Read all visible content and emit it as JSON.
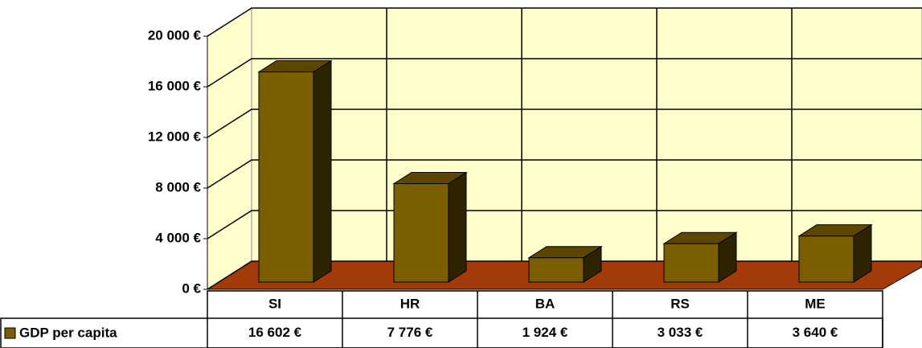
{
  "chart_data": {
    "type": "bar3d",
    "categories": [
      "SI",
      "HR",
      "BA",
      "RS",
      "ME"
    ],
    "series": [
      {
        "name": "GDP per capita",
        "color": "#7a5e00",
        "values": [
          16602,
          7776,
          1924,
          3033,
          3640
        ],
        "value_labels": [
          "16 602 €",
          "7 776 €",
          "1 924 €",
          "3 033 €",
          "3 640 €"
        ]
      }
    ],
    "ylim": [
      0,
      20000
    ],
    "yticks": [
      {
        "value": 0,
        "label": "0 €"
      },
      {
        "value": 4000,
        "label": "4 000 €"
      },
      {
        "value": 8000,
        "label": "8 000 €"
      },
      {
        "value": 12000,
        "label": "12 000 €"
      },
      {
        "value": 16000,
        "label": "16 000 €"
      },
      {
        "value": 20000,
        "label": "20 000 €"
      }
    ],
    "grid": true,
    "data_table": true
  }
}
